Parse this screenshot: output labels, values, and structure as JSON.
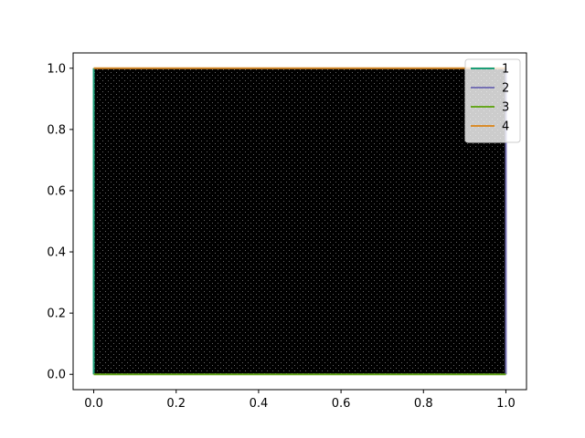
{
  "chart_data": {
    "type": "line",
    "title": "",
    "xlabel": "",
    "ylabel": "",
    "xlim": [
      -0.05,
      1.05
    ],
    "ylim": [
      -0.05,
      1.05
    ],
    "x_ticks": [
      0.0,
      0.2,
      0.4,
      0.6,
      0.8,
      1.0
    ],
    "x_tick_labels": [
      "0.0",
      "0.2",
      "0.4",
      "0.6",
      "0.8",
      "1.0"
    ],
    "y_ticks": [
      0.0,
      0.2,
      0.4,
      0.6,
      0.8,
      1.0
    ],
    "y_tick_labels": [
      "0.0",
      "0.2",
      "0.4",
      "0.6",
      "0.8",
      "1.0"
    ],
    "grid": false,
    "legend_position": "top-right",
    "fill": {
      "description": "dense black triangular mesh filling the unit square",
      "x": [
        0,
        1,
        1,
        0
      ],
      "y": [
        0,
        0,
        1,
        1
      ],
      "color": "#000000"
    },
    "series": [
      {
        "name": "1",
        "color": "#1b9e77",
        "x": [
          0,
          0
        ],
        "y": [
          0,
          1
        ]
      },
      {
        "name": "2",
        "color": "#7570b3",
        "x": [
          1,
          1
        ],
        "y": [
          0,
          1
        ]
      },
      {
        "name": "3",
        "color": "#66a61e",
        "x": [
          0,
          1
        ],
        "y": [
          0,
          0
        ]
      },
      {
        "name": "4",
        "color": "#d98c2a",
        "x": [
          0,
          1
        ],
        "y": [
          1,
          1
        ]
      }
    ]
  }
}
